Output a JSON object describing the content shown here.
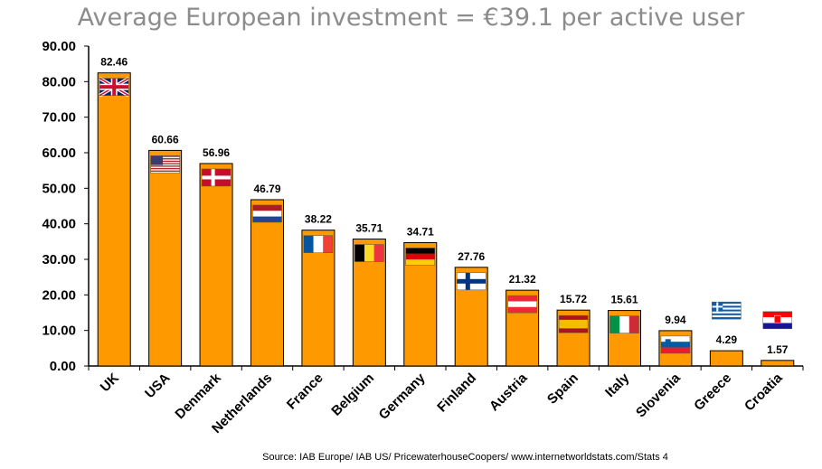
{
  "title": "Average European investment = €39.1 per active user",
  "source": "Source: IAB Europe/ IAB US/ PricewaterhouseCoopers/ www.internetworldstats.com/Stats 4",
  "colors": {
    "bar": "#ff9900",
    "bar_edge": "#000000",
    "title": "#8c8c8c"
  },
  "chart_data": {
    "type": "bar",
    "title": "Average European investment = €39.1 per active user",
    "xlabel": "",
    "ylabel": "",
    "ylim": [
      0,
      90
    ],
    "yticks": [
      "0.00",
      "10.00",
      "20.00",
      "30.00",
      "40.00",
      "50.00",
      "60.00",
      "70.00",
      "80.00",
      "90.00"
    ],
    "grid": false,
    "categories": [
      "UK",
      "USA",
      "Denmark",
      "Netherlands",
      "France",
      "Belgium",
      "Germany",
      "Finland",
      "Austria",
      "Spain",
      "Italy",
      "Slovenia",
      "Greece",
      "Croatia"
    ],
    "values": [
      82.46,
      60.66,
      56.96,
      46.79,
      38.22,
      35.71,
      34.71,
      27.76,
      21.32,
      15.72,
      15.61,
      9.94,
      4.29,
      1.57
    ],
    "data_labels": [
      "82.46",
      "60.66",
      "56.96",
      "46.79",
      "38.22",
      "35.71",
      "34.71",
      "27.76",
      "21.32",
      "15.72",
      "15.61",
      "9.94",
      "4.29",
      "1.57"
    ],
    "flags": [
      "uk-flag",
      "usa-flag",
      "denmark-flag",
      "netherlands-flag",
      "france-flag",
      "belgium-flag",
      "germany-flag",
      "finland-flag",
      "austria-flag",
      "spain-flag",
      "italy-flag",
      "slovenia-flag",
      "greece-flag",
      "croatia-flag"
    ]
  }
}
